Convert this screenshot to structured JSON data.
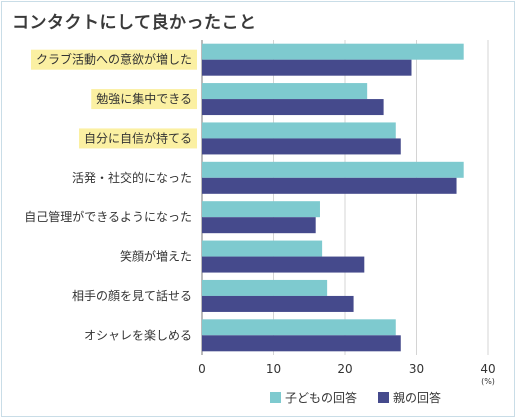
{
  "page": {
    "title": "コンタクトにして良かったこと"
  },
  "chart_data": {
    "type": "bar",
    "orientation": "horizontal",
    "title": "コンタクトにして良かったこと",
    "categories": [
      "クラブ活動への意欲が増した",
      "勉強に集中できる",
      "自分に自信が持てる",
      "活発・社交的になった",
      "自己管理ができるようになった",
      "笑顔が増えた",
      "相手の顔を見て話せる",
      "オシャレを楽しめる"
    ],
    "highlighted_categories": [
      "クラブ活動への意欲が増した",
      "勉強に集中できる",
      "自分に自信が持てる"
    ],
    "series": [
      {
        "name": "子どもの回答",
        "color": "#7ecacf",
        "values": [
          36.6,
          23.1,
          27.1,
          36.6,
          16.5,
          16.8,
          17.5,
          27.1
        ]
      },
      {
        "name": "親の回答",
        "color": "#454a8c",
        "values": [
          29.3,
          25.4,
          27.8,
          35.6,
          15.9,
          22.7,
          21.2,
          27.8
        ]
      }
    ],
    "xlim": [
      0,
      40
    ],
    "xticks": [
      "0",
      "10",
      "20",
      "30",
      "40"
    ],
    "unit": "(%)",
    "grid": true,
    "legend_position": "bottom",
    "highlight_color": "#fbf0a2"
  }
}
